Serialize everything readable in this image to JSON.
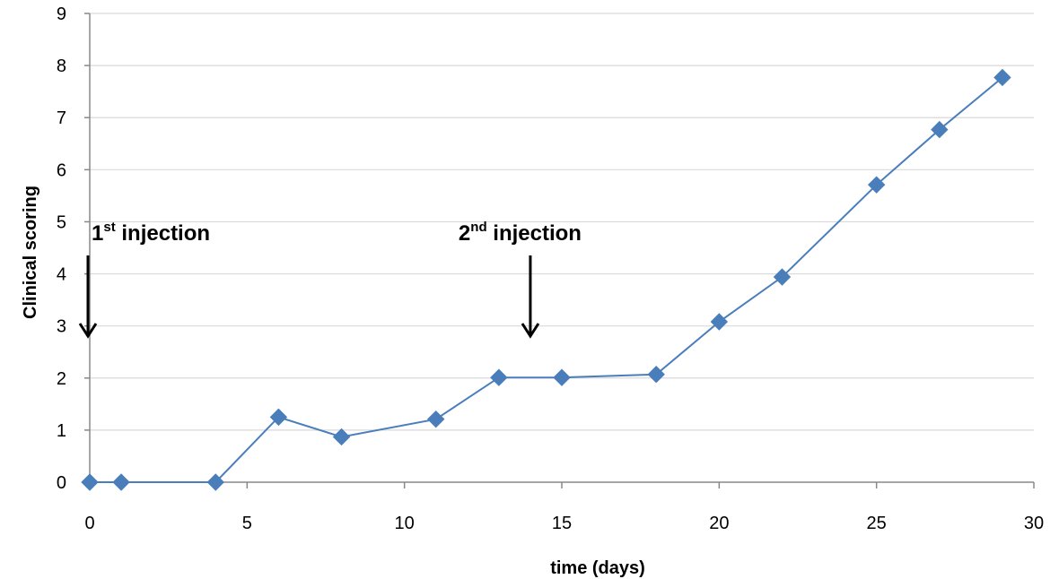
{
  "chart_data": {
    "type": "line",
    "title": "",
    "xlabel": "time (days)",
    "ylabel": "Clinical scoring",
    "xlim": [
      0,
      30
    ],
    "ylim": [
      0,
      9
    ],
    "xticks": [
      0,
      5,
      10,
      15,
      20,
      25,
      30
    ],
    "yticks": [
      0,
      1,
      2,
      3,
      4,
      5,
      6,
      7,
      8,
      9
    ],
    "grid": "horizontal",
    "legend": "none",
    "series": [
      {
        "color": "#4a7ebb",
        "marker": "diamond",
        "x": [
          0,
          1,
          4,
          6,
          8,
          11,
          13,
          15,
          18,
          20,
          22,
          25,
          27,
          29
        ],
        "y": [
          0,
          0,
          0,
          1.25,
          0.87,
          1.21,
          2.01,
          2.01,
          2.07,
          3.08,
          3.94,
          5.71,
          6.77,
          7.77
        ]
      }
    ],
    "annotations": [
      {
        "number": "1",
        "sup": "st",
        "rest": " injection",
        "x": 0
      },
      {
        "number": "2",
        "sup": "nd",
        "rest": " injection",
        "x": 14
      }
    ]
  }
}
